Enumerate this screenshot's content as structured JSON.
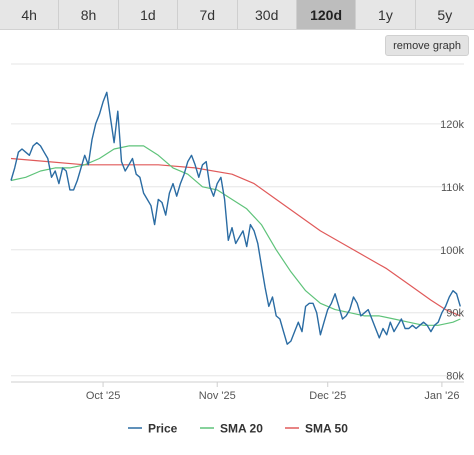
{
  "range_tabs": [
    {
      "label": "4h",
      "active": false
    },
    {
      "label": "8h",
      "active": false
    },
    {
      "label": "1d",
      "active": false
    },
    {
      "label": "7d",
      "active": false
    },
    {
      "label": "30d",
      "active": false
    },
    {
      "label": "120d",
      "active": true
    },
    {
      "label": "1y",
      "active": false
    },
    {
      "label": "5y",
      "active": false
    }
  ],
  "remove_graph_label": "remove graph",
  "chart_data": {
    "type": "line",
    "x_ticks": [
      {
        "label": "Oct '25",
        "day": 25
      },
      {
        "label": "Nov '25",
        "day": 56
      },
      {
        "label": "Dec '25",
        "day": 86
      },
      {
        "label": "Jan '26",
        "day": 117
      }
    ],
    "x_range": [
      0,
      123
    ],
    "y_ticks": [
      {
        "label": "80k",
        "value": 80000
      },
      {
        "label": "90k",
        "value": 90000
      },
      {
        "label": "100k",
        "value": 100000
      },
      {
        "label": "110k",
        "value": 110000
      },
      {
        "label": "120k",
        "value": 120000
      }
    ],
    "ylim": [
      79000,
      129500
    ],
    "grid": "horizontal",
    "legend_position": "bottom",
    "series": [
      {
        "name": "Price",
        "color": "#2b6ca3",
        "points": [
          [
            0,
            111000
          ],
          [
            1,
            113000
          ],
          [
            2,
            115500
          ],
          [
            3,
            116000
          ],
          [
            4,
            115500
          ],
          [
            5,
            115000
          ],
          [
            6,
            116500
          ],
          [
            7,
            117000
          ],
          [
            8,
            116500
          ],
          [
            9,
            115500
          ],
          [
            10,
            114500
          ],
          [
            11,
            111500
          ],
          [
            12,
            112500
          ],
          [
            13,
            110500
          ],
          [
            14,
            113000
          ],
          [
            15,
            112500
          ],
          [
            16,
            109500
          ],
          [
            17,
            109500
          ],
          [
            18,
            111000
          ],
          [
            19,
            113000
          ],
          [
            20,
            115000
          ],
          [
            21,
            113500
          ],
          [
            22,
            117500
          ],
          [
            23,
            120000
          ],
          [
            24,
            121500
          ],
          [
            25,
            123500
          ],
          [
            26,
            125000
          ],
          [
            27,
            121000
          ],
          [
            28,
            117000
          ],
          [
            29,
            122000
          ],
          [
            30,
            114000
          ],
          [
            31,
            112500
          ],
          [
            32,
            113500
          ],
          [
            33,
            114500
          ],
          [
            34,
            112000
          ],
          [
            35,
            111500
          ],
          [
            36,
            109000
          ],
          [
            37,
            108000
          ],
          [
            38,
            107000
          ],
          [
            39,
            104000
          ],
          [
            40,
            108000
          ],
          [
            41,
            107500
          ],
          [
            42,
            105500
          ],
          [
            43,
            109000
          ],
          [
            44,
            110500
          ],
          [
            45,
            108500
          ],
          [
            46,
            110500
          ],
          [
            47,
            112000
          ],
          [
            48,
            114000
          ],
          [
            49,
            115000
          ],
          [
            50,
            113500
          ],
          [
            51,
            111500
          ],
          [
            52,
            113500
          ],
          [
            53,
            114000
          ],
          [
            54,
            110000
          ],
          [
            55,
            108500
          ],
          [
            56,
            110500
          ],
          [
            57,
            111500
          ],
          [
            58,
            108000
          ],
          [
            59,
            101500
          ],
          [
            60,
            103500
          ],
          [
            61,
            101000
          ],
          [
            62,
            102000
          ],
          [
            63,
            103000
          ],
          [
            64,
            100500
          ],
          [
            65,
            104000
          ],
          [
            66,
            103000
          ],
          [
            67,
            101000
          ],
          [
            68,
            97500
          ],
          [
            69,
            94000
          ],
          [
            70,
            91000
          ],
          [
            71,
            92500
          ],
          [
            72,
            89500
          ],
          [
            73,
            89000
          ],
          [
            74,
            87000
          ],
          [
            75,
            85000
          ],
          [
            76,
            85500
          ],
          [
            77,
            87000
          ],
          [
            78,
            88500
          ],
          [
            79,
            87000
          ],
          [
            80,
            91000
          ],
          [
            81,
            91500
          ],
          [
            82,
            91500
          ],
          [
            83,
            90000
          ],
          [
            84,
            86500
          ],
          [
            85,
            88500
          ],
          [
            86,
            90500
          ],
          [
            87,
            91500
          ],
          [
            88,
            93000
          ],
          [
            89,
            91000
          ],
          [
            90,
            89000
          ],
          [
            91,
            89500
          ],
          [
            92,
            90500
          ],
          [
            93,
            92500
          ],
          [
            94,
            91500
          ],
          [
            95,
            89500
          ],
          [
            96,
            90000
          ],
          [
            97,
            90500
          ],
          [
            98,
            89000
          ],
          [
            99,
            87500
          ],
          [
            100,
            86000
          ],
          [
            101,
            87500
          ],
          [
            102,
            86500
          ],
          [
            103,
            88500
          ],
          [
            104,
            87000
          ],
          [
            105,
            88000
          ],
          [
            106,
            89000
          ],
          [
            107,
            87500
          ],
          [
            108,
            87500
          ],
          [
            109,
            88000
          ],
          [
            110,
            87500
          ],
          [
            111,
            88000
          ],
          [
            112,
            88500
          ],
          [
            113,
            88000
          ],
          [
            114,
            87000
          ],
          [
            115,
            88000
          ],
          [
            116,
            88500
          ],
          [
            117,
            90000
          ],
          [
            118,
            91000
          ],
          [
            119,
            92500
          ],
          [
            120,
            93500
          ],
          [
            121,
            93000
          ],
          [
            122,
            91000
          ]
        ]
      },
      {
        "name": "SMA 20",
        "color": "#5fc37a",
        "points": [
          [
            0,
            111000
          ],
          [
            4,
            111500
          ],
          [
            8,
            112500
          ],
          [
            12,
            113000
          ],
          [
            16,
            113000
          ],
          [
            20,
            113500
          ],
          [
            24,
            114500
          ],
          [
            28,
            116000
          ],
          [
            32,
            116500
          ],
          [
            36,
            116500
          ],
          [
            40,
            115000
          ],
          [
            44,
            113000
          ],
          [
            48,
            112000
          ],
          [
            52,
            110000
          ],
          [
            56,
            109500
          ],
          [
            60,
            108000
          ],
          [
            64,
            106500
          ],
          [
            68,
            104000
          ],
          [
            72,
            100000
          ],
          [
            76,
            96500
          ],
          [
            80,
            93500
          ],
          [
            84,
            91500
          ],
          [
            88,
            90500
          ],
          [
            92,
            90000
          ],
          [
            96,
            89500
          ],
          [
            100,
            89500
          ],
          [
            104,
            89000
          ],
          [
            108,
            88500
          ],
          [
            112,
            88000
          ],
          [
            116,
            88000
          ],
          [
            120,
            88500
          ],
          [
            122,
            89000
          ]
        ]
      },
      {
        "name": "SMA 50",
        "color": "#e05a5a",
        "points": [
          [
            0,
            114500
          ],
          [
            10,
            114000
          ],
          [
            20,
            113500
          ],
          [
            30,
            113500
          ],
          [
            40,
            113500
          ],
          [
            50,
            113000
          ],
          [
            60,
            112000
          ],
          [
            66,
            110500
          ],
          [
            72,
            108000
          ],
          [
            78,
            105500
          ],
          [
            84,
            103000
          ],
          [
            90,
            101000
          ],
          [
            96,
            99000
          ],
          [
            102,
            97000
          ],
          [
            108,
            94500
          ],
          [
            114,
            92000
          ],
          [
            118,
            90500
          ],
          [
            122,
            89500
          ]
        ]
      }
    ]
  }
}
